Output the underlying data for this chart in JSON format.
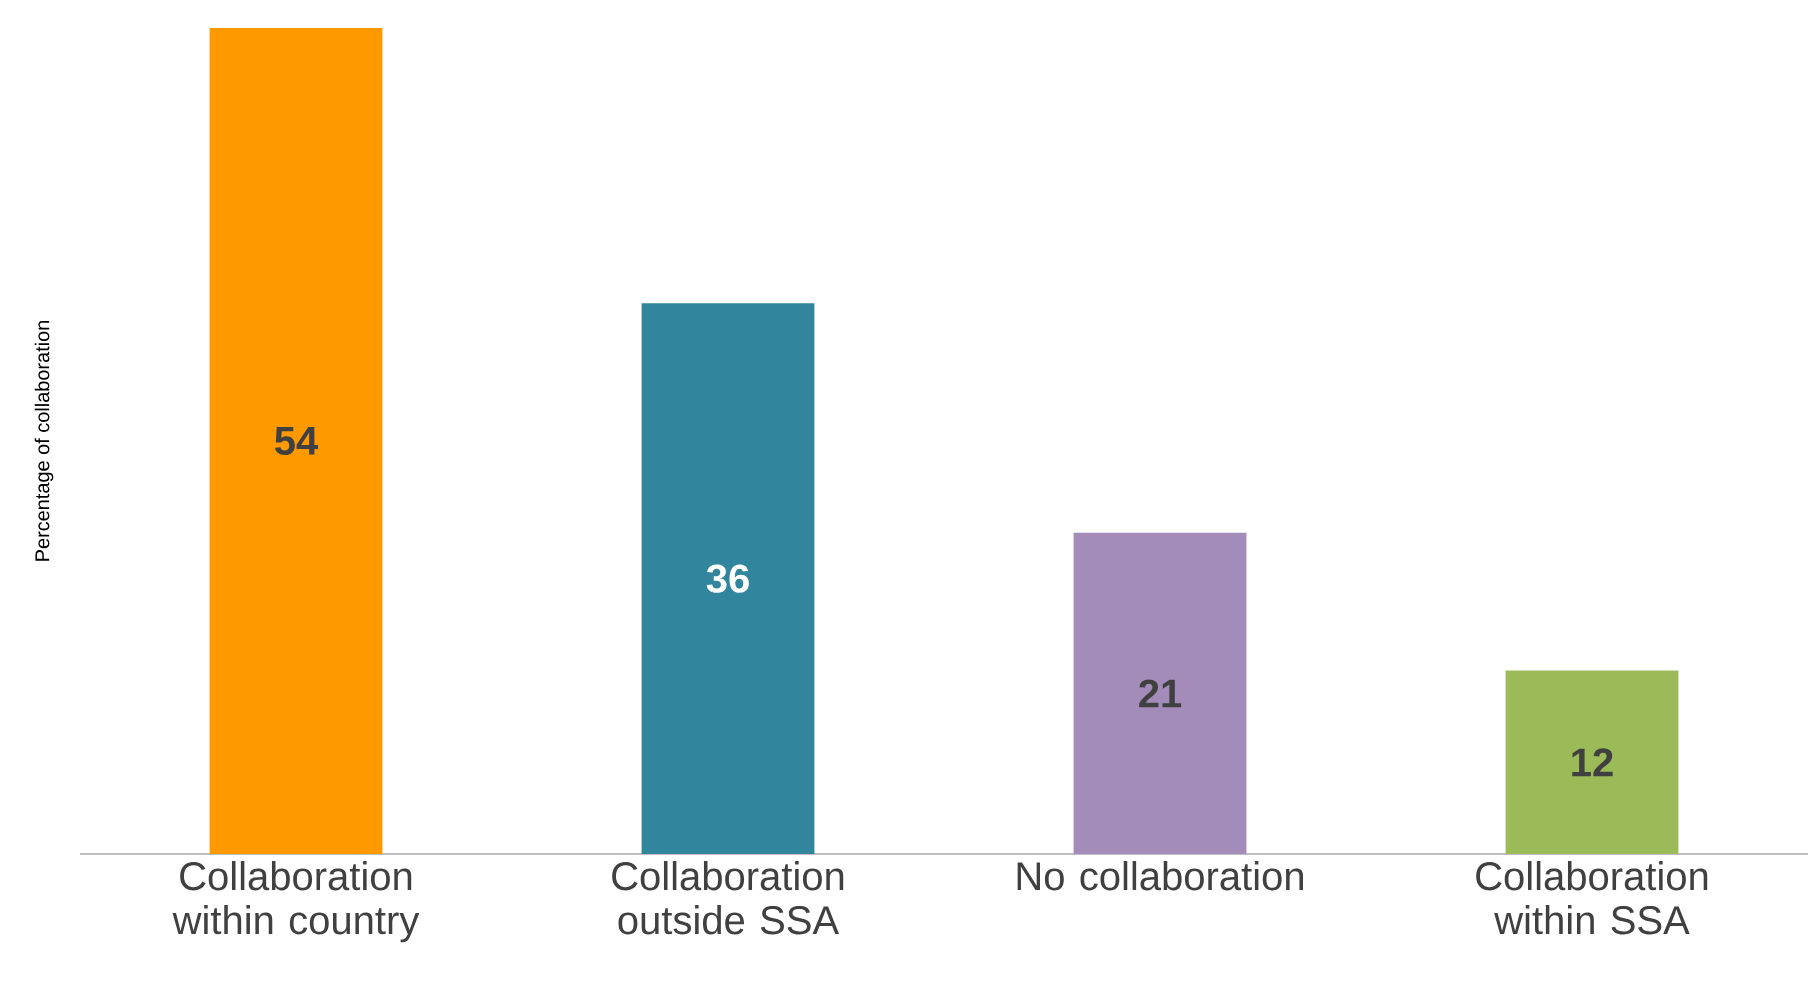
{
  "chart_data": {
    "type": "bar",
    "ylabel": "Percentage of collaboration",
    "categories": [
      "Collaboration within country",
      "Collaboration outside SSA",
      "No collaboration",
      "Collaboration within SSA"
    ],
    "values": [
      54,
      36,
      21,
      12
    ],
    "colors": [
      "#ff9900",
      "#31859c",
      "#a38cba",
      "#9bbb59"
    ],
    "data_labels": true
  }
}
